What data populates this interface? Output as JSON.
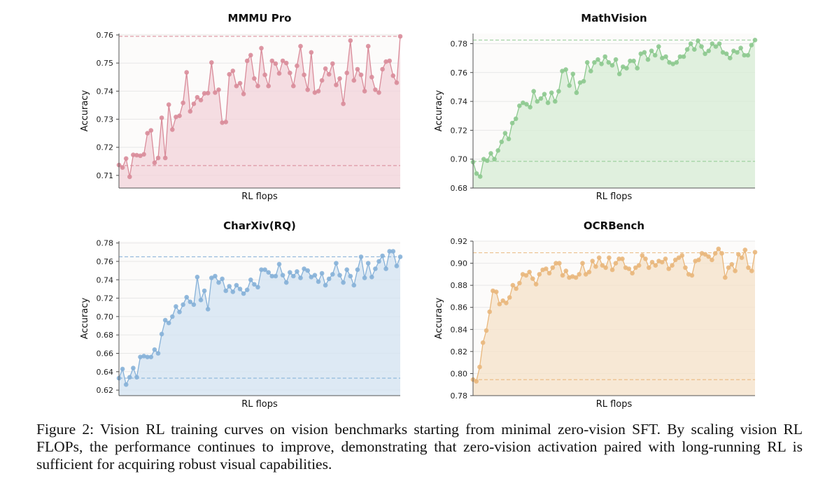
{
  "caption": "Figure 2: Vision RL training curves on vision benchmarks starting from minimal zero-vision SFT. By scaling vision RL FLOPs, the performance continues to improve, demonstrating that zero-vision activation paired with long-running RL is sufficient for acquiring robust visual capabilities.",
  "chart_data": [
    {
      "type": "line",
      "title": "MMMU Pro",
      "xlabel": "RL flops",
      "ylabel": "Accuracy",
      "ylim": [
        0.7055,
        0.7605
      ],
      "yticks": [
        "0.71",
        "0.72",
        "0.73",
        "0.74",
        "0.75",
        "0.76"
      ],
      "color": "#d98c9a",
      "fill": "#f3d3d9",
      "ref_lines": [
        0.7595,
        0.7135
      ],
      "grid": true,
      "series": [
        {
          "values": [
            0.7137,
            0.7128,
            0.716,
            0.7095,
            0.7173,
            0.7172,
            0.717,
            0.7175,
            0.725,
            0.726,
            0.7145,
            0.7162,
            0.7305,
            0.7162,
            0.7352,
            0.7263,
            0.7308,
            0.7312,
            0.7358,
            0.7467,
            0.7328,
            0.7355,
            0.7378,
            0.7368,
            0.7392,
            0.7393,
            0.7502,
            0.7395,
            0.7405,
            0.7288,
            0.729,
            0.746,
            0.7472,
            0.7418,
            0.7428,
            0.739,
            0.7508,
            0.7528,
            0.7445,
            0.7418,
            0.7553,
            0.7458,
            0.7418,
            0.7508,
            0.7498,
            0.7463,
            0.7508,
            0.75,
            0.7465,
            0.7418,
            0.749,
            0.756,
            0.7458,
            0.7405,
            0.7538,
            0.7395,
            0.74,
            0.7438,
            0.748,
            0.746,
            0.7498,
            0.7422,
            0.7445,
            0.7355,
            0.7465,
            0.758,
            0.7438,
            0.7478,
            0.7458,
            0.74,
            0.756,
            0.745,
            0.7405,
            0.7395,
            0.7478,
            0.7505,
            0.7508,
            0.7455,
            0.743,
            0.7595
          ]
        }
      ]
    },
    {
      "type": "line",
      "title": "MathVision",
      "xlabel": "RL flops",
      "ylabel": "Accuracy",
      "ylim": [
        0.68,
        0.787
      ],
      "yticks": [
        "0.68",
        "0.70",
        "0.72",
        "0.74",
        "0.76",
        "0.78"
      ],
      "color": "#8dc98f",
      "fill": "#d7ecd4",
      "ref_lines": [
        0.7825,
        0.6985
      ],
      "grid": true,
      "series": [
        {
          "values": [
            0.698,
            0.69,
            0.688,
            0.7,
            0.699,
            0.704,
            0.7,
            0.706,
            0.712,
            0.718,
            0.714,
            0.725,
            0.728,
            0.737,
            0.739,
            0.738,
            0.736,
            0.747,
            0.74,
            0.742,
            0.745,
            0.739,
            0.746,
            0.74,
            0.747,
            0.761,
            0.762,
            0.751,
            0.759,
            0.746,
            0.753,
            0.754,
            0.767,
            0.761,
            0.767,
            0.769,
            0.766,
            0.771,
            0.767,
            0.765,
            0.769,
            0.759,
            0.764,
            0.763,
            0.768,
            0.768,
            0.763,
            0.773,
            0.774,
            0.769,
            0.775,
            0.772,
            0.778,
            0.77,
            0.771,
            0.767,
            0.766,
            0.767,
            0.771,
            0.771,
            0.776,
            0.78,
            0.776,
            0.782,
            0.778,
            0.773,
            0.775,
            0.78,
            0.778,
            0.78,
            0.774,
            0.773,
            0.77,
            0.775,
            0.774,
            0.777,
            0.772,
            0.772,
            0.779,
            0.7825
          ]
        }
      ]
    },
    {
      "type": "line",
      "title": "CharXiv(RQ)",
      "xlabel": "RL flops",
      "ylabel": "Accuracy",
      "ylim": [
        0.614,
        0.782
      ],
      "yticks": [
        "0.62",
        "0.64",
        "0.66",
        "0.68",
        "0.70",
        "0.72",
        "0.74",
        "0.76",
        "0.78"
      ],
      "color": "#86b1d8",
      "fill": "#d3e3f2",
      "ref_lines": [
        0.765,
        0.633
      ],
      "grid": true,
      "series": [
        {
          "values": [
            0.633,
            0.643,
            0.626,
            0.634,
            0.644,
            0.634,
            0.656,
            0.657,
            0.656,
            0.656,
            0.664,
            0.66,
            0.681,
            0.696,
            0.693,
            0.7,
            0.711,
            0.705,
            0.713,
            0.721,
            0.716,
            0.713,
            0.743,
            0.718,
            0.728,
            0.708,
            0.742,
            0.744,
            0.737,
            0.741,
            0.728,
            0.733,
            0.727,
            0.734,
            0.73,
            0.725,
            0.729,
            0.74,
            0.735,
            0.732,
            0.751,
            0.751,
            0.748,
            0.744,
            0.744,
            0.757,
            0.745,
            0.737,
            0.748,
            0.744,
            0.749,
            0.742,
            0.752,
            0.75,
            0.743,
            0.745,
            0.738,
            0.747,
            0.734,
            0.741,
            0.746,
            0.758,
            0.745,
            0.737,
            0.751,
            0.744,
            0.734,
            0.751,
            0.765,
            0.742,
            0.758,
            0.743,
            0.752,
            0.76,
            0.766,
            0.752,
            0.771,
            0.771,
            0.755,
            0.765
          ]
        }
      ]
    },
    {
      "type": "line",
      "title": "OCRBench",
      "xlabel": "RL flops",
      "ylabel": "Accuracy",
      "ylim": [
        0.78,
        0.92
      ],
      "yticks": [
        "0.78",
        "0.80",
        "0.82",
        "0.84",
        "0.86",
        "0.88",
        "0.90",
        "0.92"
      ],
      "color": "#e9b77c",
      "fill": "#f6e1c8",
      "ref_lines": [
        0.9095,
        0.7945
      ],
      "grid": true,
      "series": [
        {
          "values": [
            0.7945,
            0.793,
            0.806,
            0.828,
            0.839,
            0.856,
            0.875,
            0.874,
            0.863,
            0.866,
            0.864,
            0.869,
            0.88,
            0.877,
            0.882,
            0.89,
            0.889,
            0.892,
            0.886,
            0.881,
            0.89,
            0.894,
            0.895,
            0.891,
            0.896,
            0.9,
            0.9,
            0.889,
            0.893,
            0.887,
            0.888,
            0.887,
            0.89,
            0.9,
            0.89,
            0.892,
            0.902,
            0.897,
            0.905,
            0.898,
            0.896,
            0.905,
            0.894,
            0.9,
            0.904,
            0.904,
            0.896,
            0.895,
            0.891,
            0.896,
            0.898,
            0.907,
            0.904,
            0.896,
            0.901,
            0.898,
            0.902,
            0.901,
            0.904,
            0.895,
            0.898,
            0.903,
            0.905,
            0.907,
            0.896,
            0.89,
            0.889,
            0.902,
            0.903,
            0.909,
            0.908,
            0.906,
            0.903,
            0.909,
            0.913,
            0.909,
            0.887,
            0.896,
            0.899,
            0.893,
            0.908,
            0.905,
            0.912,
            0.896,
            0.893,
            0.91
          ]
        }
      ]
    }
  ]
}
